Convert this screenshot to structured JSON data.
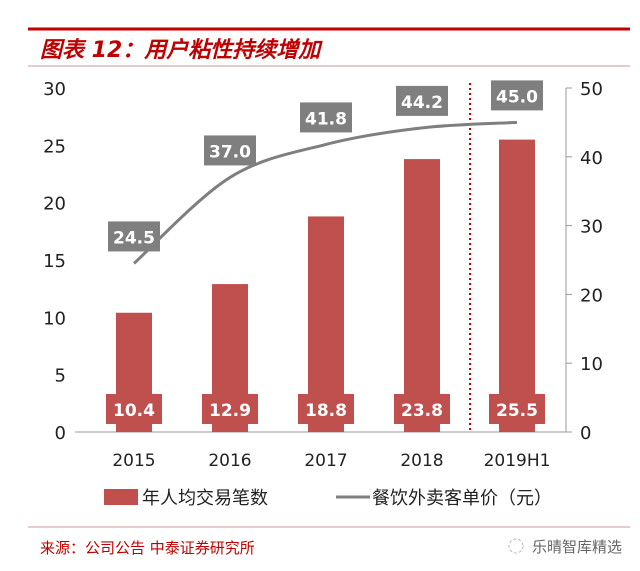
{
  "title": "图表 12：用户粘性持续增加",
  "source": "来源：公司公告  中泰证券研究所",
  "watermark": "乐晴智库精选",
  "colors": {
    "bar": "#c0504d",
    "line": "#7f7f7f",
    "label_box": "#7f7f7f",
    "accent": "#c00000"
  },
  "chart_data": {
    "type": "bar+line",
    "categories": [
      "2015",
      "2016",
      "2017",
      "2018",
      "2019H1"
    ],
    "series": [
      {
        "name": "年人均交易笔数",
        "type": "bar",
        "axis": "left",
        "values": [
          10.4,
          12.9,
          18.8,
          23.8,
          25.5
        ]
      },
      {
        "name": "餐饮外卖客单价（元）",
        "type": "line",
        "axis": "right",
        "values": [
          24.5,
          37.0,
          41.8,
          44.2,
          45.0
        ]
      }
    ],
    "y_left": {
      "range": [
        0,
        30
      ],
      "ticks": [
        "0",
        "5",
        "10",
        "15",
        "20",
        "25",
        "30"
      ]
    },
    "y_right": {
      "range": [
        0,
        50
      ],
      "ticks": [
        "0",
        "10",
        "20",
        "30",
        "40",
        "50"
      ]
    },
    "data_labels": {
      "bars": [
        "10.4",
        "12.9",
        "18.8",
        "23.8",
        "25.5"
      ],
      "line": [
        "24.5",
        "37.0",
        "41.8",
        "44.2",
        "45.0"
      ]
    },
    "legend": "bottom",
    "grid": false,
    "annotation": "dotted vertical separator before 2019H1"
  }
}
